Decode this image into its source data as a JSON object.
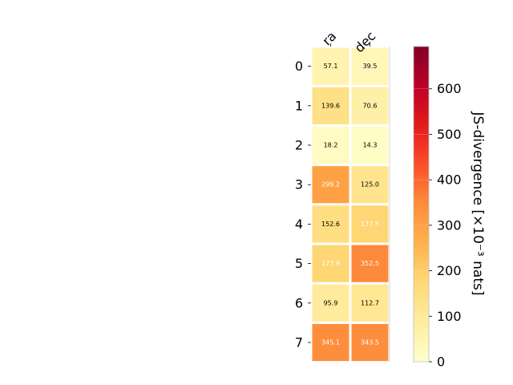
{
  "chart_data": {
    "type": "heatmap",
    "columns": [
      "ra",
      "dec"
    ],
    "rows": [
      "0",
      "1",
      "2",
      "3",
      "4",
      "5",
      "6",
      "7"
    ],
    "values": [
      [
        57.1,
        39.5
      ],
      [
        139.6,
        70.6
      ],
      [
        18.2,
        14.3
      ],
      [
        299.2,
        125.0
      ],
      [
        152.6,
        177.5
      ],
      [
        177.9,
        352.5
      ],
      [
        95.9,
        112.7
      ],
      [
        345.1,
        343.5
      ]
    ],
    "cell_labels": [
      [
        "57.1",
        "39.5"
      ],
      [
        "139.6",
        "70.6"
      ],
      [
        "18.2",
        "14.3"
      ],
      [
        "299.2",
        "125.0"
      ],
      [
        "152.6",
        "177.5"
      ],
      [
        "177.9",
        "352.5"
      ],
      [
        "95.9",
        "112.7"
      ],
      [
        "345.1",
        "343.5"
      ]
    ],
    "colorbar": {
      "label": "JS-divergence [×10⁻³ nats]",
      "range": [
        0,
        693
      ],
      "ticks": [
        0,
        100,
        200,
        300,
        400,
        500,
        600
      ],
      "tick_labels": [
        "0",
        "100",
        "200",
        "300",
        "400",
        "500",
        "600"
      ],
      "colormap": "YlOrRd"
    },
    "grid": false
  }
}
